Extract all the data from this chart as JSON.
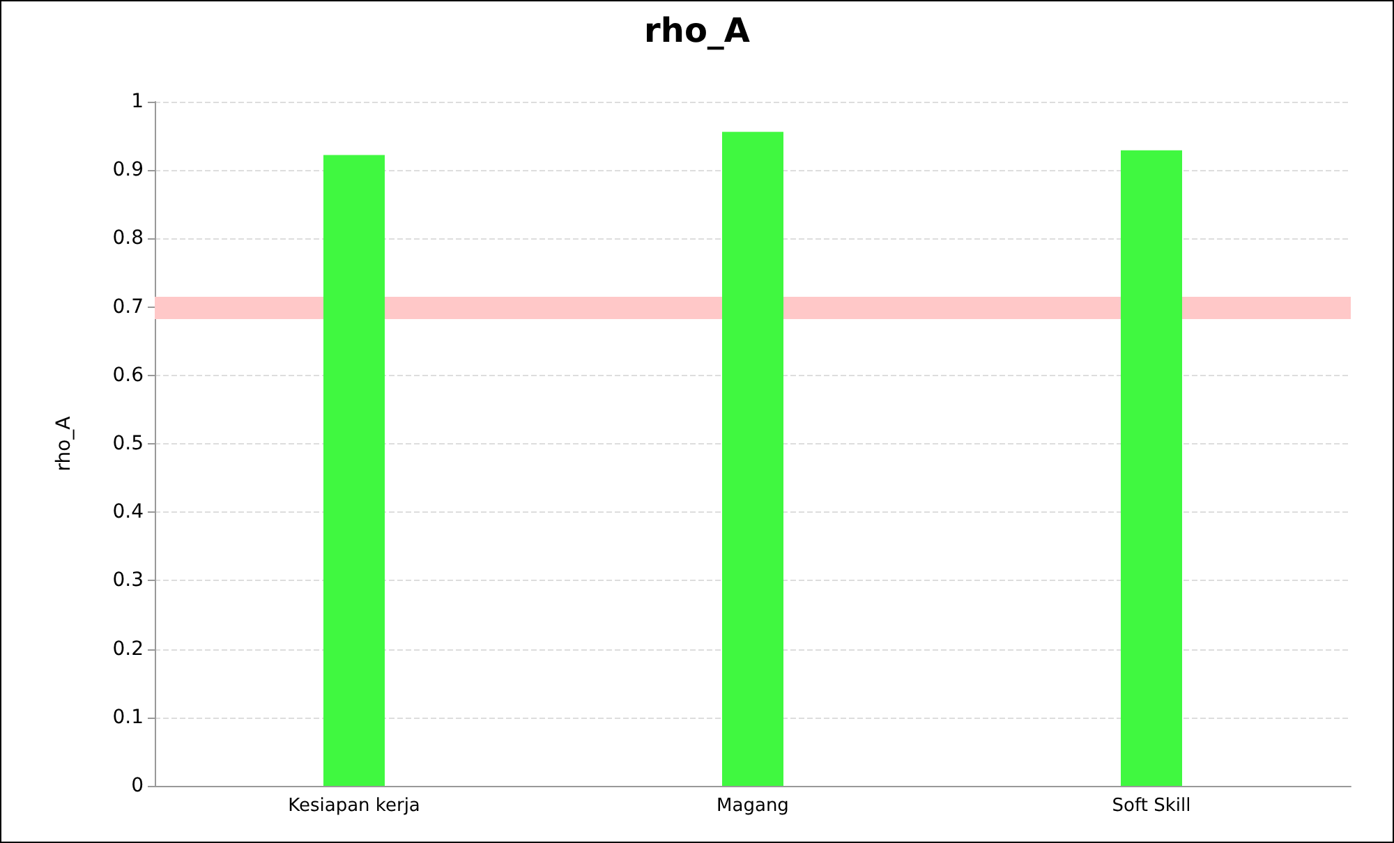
{
  "chart_data": {
    "type": "bar",
    "title": "rho_A",
    "ylabel": "rho_A",
    "categories": [
      "Kesiapan kerja",
      "Magang",
      "Soft Skill"
    ],
    "values": [
      0.922,
      0.956,
      0.929
    ],
    "color": "#40f840",
    "ylim": [
      0,
      1
    ],
    "yticks": [
      0,
      0.1,
      0.2,
      0.3,
      0.4,
      0.5,
      0.6,
      0.7,
      0.8,
      0.9,
      1
    ],
    "grid": "y",
    "ref_lines": [
      {
        "axis": "y",
        "value": 0.7,
        "color": "#ffc8c8"
      }
    ]
  }
}
